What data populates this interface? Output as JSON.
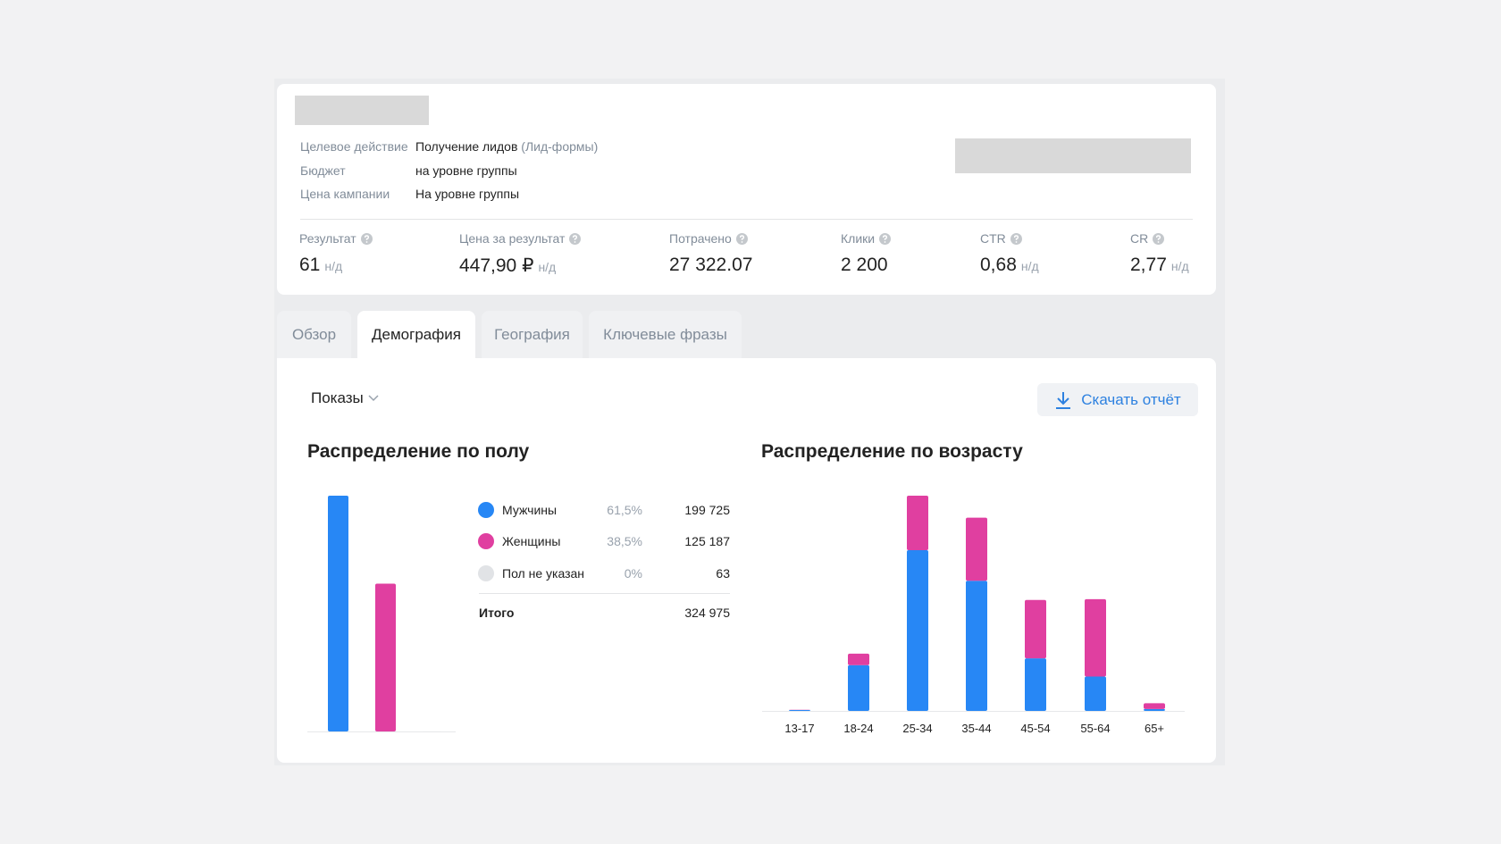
{
  "header": {
    "fields": [
      {
        "label": "Целевое действие",
        "value": "Получение лидов",
        "note": "(Лид-формы)"
      },
      {
        "label": "Бюджет",
        "value": "на уровне группы"
      },
      {
        "label": "Цена кампании",
        "value": "На уровне группы"
      }
    ]
  },
  "metrics": [
    {
      "label": "Результат",
      "value": "61",
      "unit": "н/д"
    },
    {
      "label": "Цена за результат",
      "value": "447,90 ₽",
      "unit": "н/д"
    },
    {
      "label": "Потрачено",
      "value": "27 322.07"
    },
    {
      "label": "Клики",
      "value": "2 200"
    },
    {
      "label": "CTR",
      "value": "0,68",
      "unit": "н/д"
    },
    {
      "label": "CR",
      "value": "2,77",
      "unit": "н/д"
    }
  ],
  "tabs": [
    "Обзор",
    "Демография",
    "География",
    "Ключевые фразы"
  ],
  "active_tab": 1,
  "filter": "Показы",
  "download_button": "Скачать отчёт",
  "chart_data": [
    {
      "type": "bar",
      "title": "Распределение по полу",
      "categories": [
        "Мужчины",
        "Женщины",
        "Пол не указан"
      ],
      "colors": [
        "#2787f5",
        "#e03fa0",
        "#e1e3e6"
      ],
      "values": [
        199725,
        125187,
        63
      ],
      "value_labels": [
        "199 725",
        "125 187",
        "63"
      ],
      "shares": [
        "61,5%",
        "38,5%",
        "0%"
      ],
      "total_label": "Итого",
      "total": "324 975"
    },
    {
      "type": "stacked_bar",
      "title": "Распределение по возрасту",
      "categories": [
        "13-17",
        "18-24",
        "25-34",
        "35-44",
        "45-54",
        "55-64",
        "65+"
      ],
      "series": [
        {
          "color": "#2787f5",
          "values": [
            400,
            21400,
            75200,
            60900,
            24600,
            16100,
            900
          ]
        },
        {
          "color": "#e03fa0",
          "values": [
            100,
            5400,
            25500,
            29500,
            27300,
            36200,
            2700
          ]
        }
      ]
    }
  ]
}
